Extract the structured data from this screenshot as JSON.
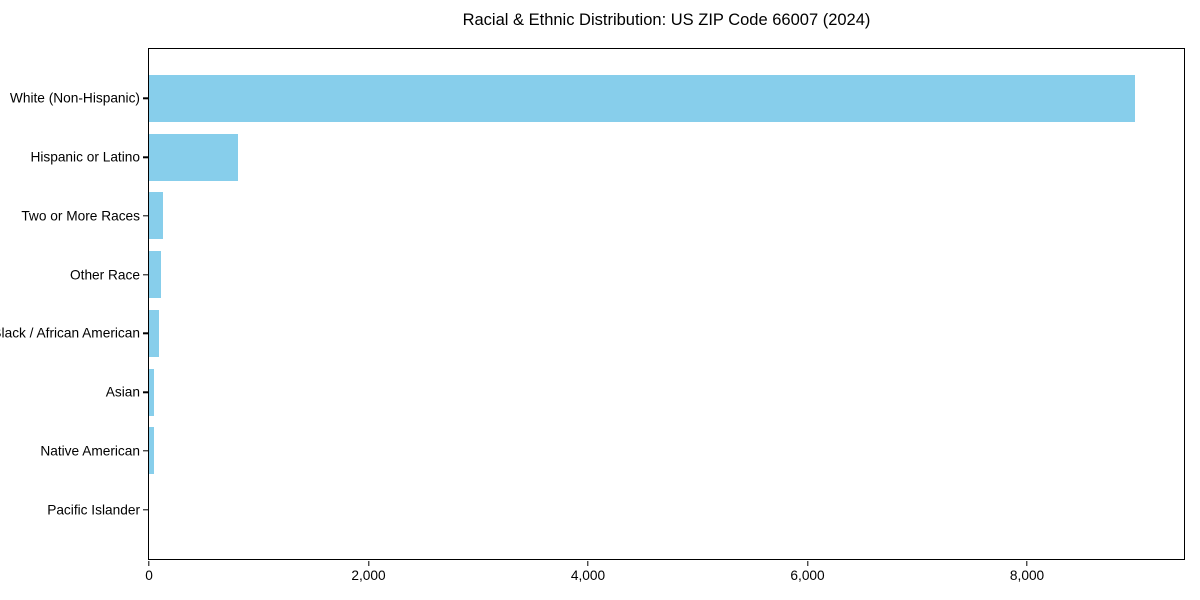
{
  "figure": {
    "background": "#ffffff"
  },
  "chart_data": {
    "type": "bar",
    "orientation": "horizontal",
    "title": "Racial & Ethnic Distribution: US ZIP Code 66007 (2024)",
    "categories": [
      "White (Non-Hispanic)",
      "Hispanic or Latino",
      "Two or More Races",
      "Other Race",
      "Black / African American",
      "Asian",
      "Native American",
      "Pacific Islander"
    ],
    "values": [
      8980,
      810,
      125,
      107,
      88,
      48,
      42,
      0
    ],
    "xlabel": "",
    "ylabel": "",
    "xlim": [
      0,
      9430
    ],
    "xticks": {
      "values": [
        0,
        2000,
        4000,
        6000,
        8000
      ],
      "labels": [
        "0",
        "2,000",
        "4,000",
        "6,000",
        "8,000"
      ]
    },
    "grid": false,
    "legend": null,
    "bar_color": "#87CEEB",
    "axis_color": "#000000",
    "text_color": "#000000"
  }
}
